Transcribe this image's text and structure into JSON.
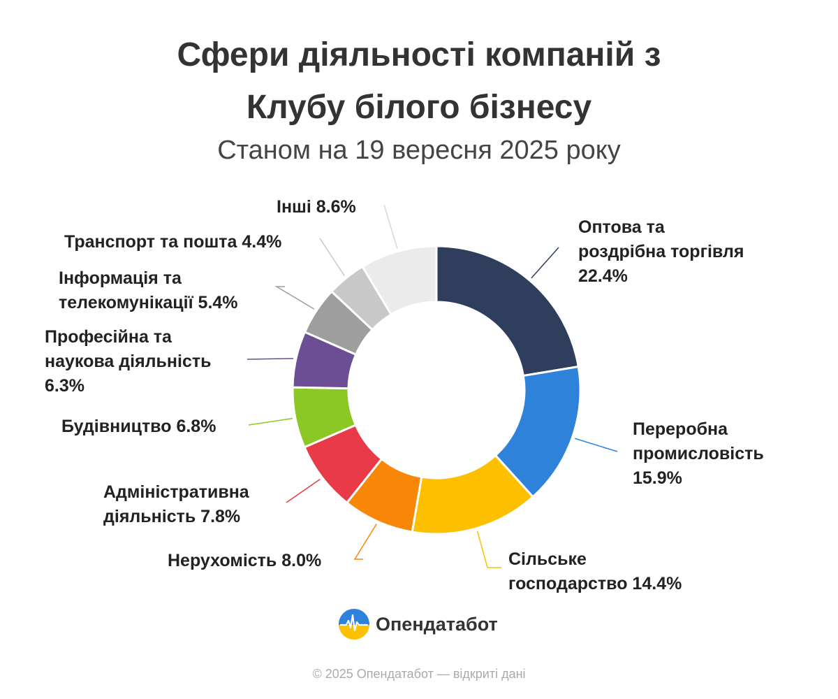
{
  "title_line1": "Сфери діяльності компаній з",
  "title_line2": "Клубу білого бізнесу",
  "subtitle": "Станом на 19 вересня 2025 року",
  "chart_data": {
    "type": "pie",
    "donut": true,
    "title": "Сфери діяльності компаній з Клубу білого бізнесу",
    "subtitle": "Станом на 19 вересня 2025 року",
    "unit": "%",
    "slices": [
      {
        "label": "Оптова та роздрібна торгівля 22.4%",
        "value": 22.4,
        "color": "#2e3e5c"
      },
      {
        "label": "Переробна промисловість 15.9%",
        "value": 15.9,
        "color": "#2e82d9"
      },
      {
        "label": "Сільське господарство 14.4%",
        "value": 14.4,
        "color": "#fcc000"
      },
      {
        "label": "Нерухомість 8.0%",
        "value": 8.0,
        "color": "#f88708"
      },
      {
        "label": "Адміністративна діяльність 7.8%",
        "value": 7.8,
        "color": "#e83a47"
      },
      {
        "label": "Будівництво 6.8%",
        "value": 6.8,
        "color": "#8cc823"
      },
      {
        "label": "Професійна та наукова діяльність 6.3%",
        "value": 6.3,
        "color": "#6b4e93"
      },
      {
        "label": "Інформація та телекомунікації 5.4%",
        "value": 5.4,
        "color": "#9e9e9e"
      },
      {
        "label": "Транспорт та пошта 4.4%",
        "value": 4.4,
        "color": "#c8c8c8"
      },
      {
        "label": "Інші 8.6%",
        "value": 8.6,
        "color": "#ebebeb"
      }
    ]
  },
  "labels": [
    "Оптова та\nроздрібна торгівля\n22.4%",
    "Переробна\nпромисловість\n15.9%",
    "Сільське\nгосподарство 14.4%",
    "Нерухомість 8.0%",
    "Адміністративна\nдіяльність 7.8%",
    "Будівництво 6.8%",
    "Професійна та\nнаукова діяльність\n6.3%",
    "Інформація та\nтелекомунікації 5.4%",
    "Транспорт та пошта 4.4%",
    "Інші 8.6%"
  ],
  "logo_text": "Опендатабот",
  "footer": "© 2025 Опендатабот — відкриті дані"
}
